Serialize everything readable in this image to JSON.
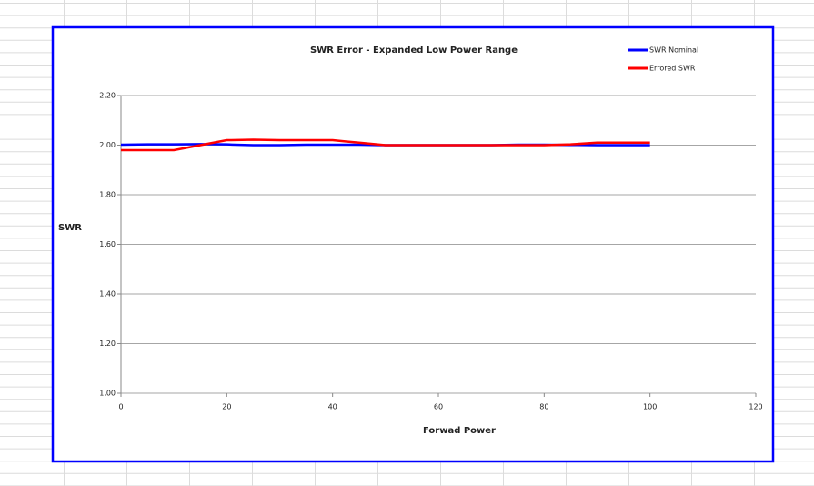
{
  "chart_data": {
    "type": "line",
    "title": "SWR Error - Expanded Low Power Range",
    "x_label": "Forwad Power",
    "y_label": "SWR",
    "x": [
      0,
      5,
      10,
      15,
      20,
      25,
      30,
      35,
      40,
      45,
      50,
      55,
      60,
      65,
      70,
      75,
      80,
      85,
      90,
      95,
      100
    ],
    "series": [
      {
        "name": "SWR Nominal",
        "color": "#0000ff",
        "values": [
          2.002,
          2.003,
          2.003,
          2.004,
          2.003,
          2.0,
          2.0,
          2.002,
          2.002,
          2.002,
          2.0,
          2.0,
          2.0,
          2.0,
          2.0,
          2.002,
          2.002,
          2.001,
          2.0,
          2.0,
          2.0
        ]
      },
      {
        "name": "Errored SWR",
        "color": "#ff0000",
        "values": [
          1.98,
          1.98,
          1.98,
          2.0,
          2.02,
          2.022,
          2.02,
          2.02,
          2.02,
          2.01,
          2.0,
          2.0,
          2.0,
          2.0,
          2.0,
          2.0,
          2.0,
          2.003,
          2.01,
          2.01,
          2.01
        ]
      }
    ],
    "xlim": [
      0,
      120
    ],
    "xticks": [
      0,
      20,
      40,
      60,
      80,
      100,
      120
    ],
    "ylim": [
      1.0,
      2.2
    ],
    "yticks": [
      {
        "value": 1.0,
        "label": "1.00"
      },
      {
        "value": 1.2,
        "label": "1.20"
      },
      {
        "value": 1.4,
        "label": "1.40"
      },
      {
        "value": 1.6,
        "label": "1.60"
      },
      {
        "value": 1.8,
        "label": "1.80"
      },
      {
        "value": 2.0,
        "label": "2.00"
      },
      {
        "value": 2.2,
        "label": "2.20"
      }
    ],
    "grid": true,
    "legend": "top-right"
  }
}
